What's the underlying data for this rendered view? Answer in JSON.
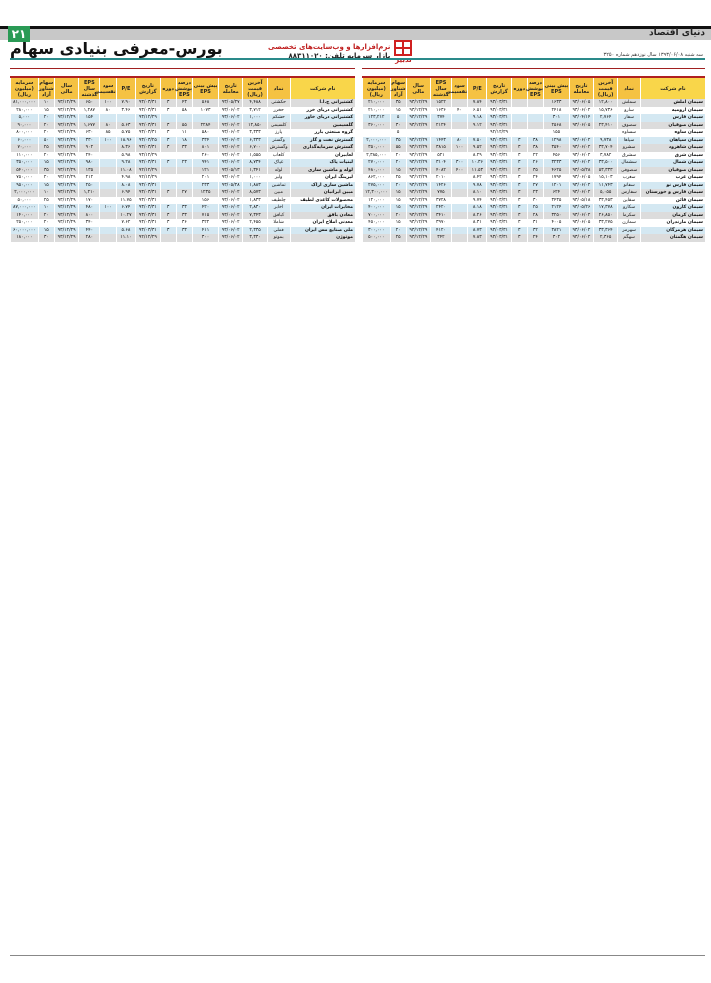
{
  "header": {
    "page_number": "۲۱",
    "masthead": "دنیای اقتصاد",
    "title": "بورس-معرفی بنیادی سهام",
    "ad_line1": "نرم‌افزارها و وب‌سایت‌های تخصصی",
    "ad_line2": "بازار سرمایه  تلفن: ۸۸۳۱۱۰۲۰",
    "logo_text": "تدبیر",
    "issue": "سه شنبه ۱۳۹۳/۰۶/۰۸ سال نوزدهم شماره ۳۲۵۰"
  },
  "colors": {
    "accent_green": "#2a9a55",
    "header_yellow": "#f5c242",
    "row_blue": "#d4e8f2",
    "row_gray": "#dcdcdc",
    "rule_red": "#b02020"
  },
  "columns": [
    "نام شرکت",
    "نماد",
    "آخرین قیمت (ریال)",
    "تاریخ معامله",
    "پیش بینی EPS",
    "درصد پوشش EPS",
    "دوره",
    "تاریخ گزارش",
    "P/E",
    "سود تقسیمی",
    "EPS سال گذشته",
    "سال مالی",
    "سهام شناور آزاد",
    "سرمایه (میلیون ریال)"
  ],
  "right_table": {
    "rows": [
      [
        "سیمان املش",
        "سملش",
        "۱۲,۸۰۰",
        "۹۳/۰۶/۰۵",
        "۱۶۳۳",
        "",
        "",
        "۹۳/۰۳/۳۱",
        "۷.۸۴",
        "",
        "۱۵۲۲",
        "۹۳/۱۲/۲۹",
        "۳۵",
        "۲۱۰,۰۰۰"
      ],
      [
        "سیمان ارومیه",
        "سارو",
        "۱۵,۷۳۶",
        "۹۳/۰۶/۰۲",
        "۲۴۱۸",
        "",
        "",
        "۹۳/۰۳/۳۱",
        "۶.۵۱",
        "۴۰",
        "۱۶۳۶",
        "۹۳/۱۲/۲۹",
        "۱۵",
        "۲۱۰,۰۰۰"
      ],
      [
        "سیمان فارس",
        "سفار",
        "۲,۷۶۴",
        "۹۳/۰۴/۱۴",
        "۳۰۱",
        "",
        "",
        "۹۳/۰۳/۳۱",
        "۹.۱۸",
        "",
        "۳۷۴",
        "۹۳/۱۲/۲۹",
        "۵",
        "۱۲۳,۲۱۲"
      ],
      [
        "سیمان صوفیان",
        "سصوف",
        "۲۳,۴۱۰",
        "۹۳/۰۶/۰۵",
        "۲۵۶۸",
        "",
        "",
        "۹۳/۰۳/۳۱",
        "۹.۱۲",
        "",
        "۲۱۲۴",
        "۹۳/۱۲/۲۹",
        "۳۰",
        "۳۶۰,۰۰۰"
      ],
      [
        "سیمان ساوه",
        "سساوه",
        "",
        "",
        "۱۵۵",
        "",
        "",
        "۹۲/۱۲/۲۹",
        "",
        "",
        "",
        "",
        "۵",
        ""
      ],
      [
        "سیمان سپاهان",
        "سپاها",
        "۹,۷۳۸",
        "۹۳/۰۶/۰۲",
        "۱۲۹۸",
        "۳۸",
        "۳",
        "۹۳/۰۳/۳۱",
        "۷.۵۰",
        "۸۰",
        "۱۴۴۳",
        "۹۳/۱۲/۲۹",
        "۳۵",
        "۲,۰۰۰,۰۰۰"
      ],
      [
        "سیمان شاهرود",
        "سشرو",
        "۳۳,۷۰۴",
        "۹۳/۰۶/۰۲",
        "۳۵۴۰",
        "۳۸",
        "۳",
        "۹۳/۰۳/۳۱",
        "۹.۵۲",
        "۱۰۰",
        "۳۸۱۵",
        "۹۳/۱۲/۲۹",
        "۵۵",
        "۳۵۰,۰۰۰"
      ],
      [
        "سیمان شرق",
        "سشرق",
        "۳,۷۸۲",
        "۹۳/۰۶/۰۲",
        "۴۵۶",
        "۲۲",
        "۳",
        "۹۳/۰۳/۳۱",
        "۸.۲۹",
        "",
        "۵۲۱",
        "۹۳/۱۲/۲۹",
        "۲۰",
        "۲,۳۸۵,۰۰۰"
      ],
      [
        "سیمان شمال",
        "سشمال",
        "۳۳,۵۰۰",
        "۹۳/۰۶/۰۲",
        "۳۲۳۳",
        "۲۶",
        "۳",
        "۹۳/۰۳/۳۱",
        "۱۰.۳۶",
        "۳۰۰",
        "۳۱۰۴",
        "۹۳/۱۲/۲۹",
        "۲۰",
        "۲۷۰,۰۰۰"
      ],
      [
        "سیمان صوفیان",
        "سصوفی",
        "۵۳,۳۳۳",
        "۹۳/۰۵/۲۸",
        "۴۶۲۵",
        "۳۵",
        "۳",
        "۹۳/۰۳/۳۱",
        "۱۱.۵۳",
        "۴۰۰",
        "۴۰۸۲",
        "۹۳/۱۲/۲۹",
        "۱۵",
        "۴۸۰,۰۰۰"
      ],
      [
        "سیمان غرب",
        "سغرب",
        "۱۵,۱۰۳",
        "۹۳/۰۶/۰۵",
        "۱۷۹۴",
        "۲۴",
        "۳",
        "۹۳/۰۳/۳۱",
        "۸.۴۲",
        "",
        "۲۰۱۰",
        "۹۳/۱۲/۲۹",
        "۲۵",
        "۸۶۲,۰۰۰"
      ],
      [
        "سیمان فارس نو",
        "سفانو",
        "۱۱,۷۴۳",
        "۹۳/۰۶/۰۲",
        "۱۲۰۱",
        "۲۷",
        "۳",
        "۹۳/۰۳/۳۱",
        "۹.۷۸",
        "",
        "۱۴۲۶",
        "۹۳/۱۲/۲۹",
        "۲۰",
        "۲۷۵,۰۰۰"
      ],
      [
        "سیمان فارس و خوزستان",
        "سفارس",
        "۵,۰۵۵",
        "۹۳/۰۶/۰۲",
        "۶۲۴",
        "۲۳",
        "۳",
        "۹۳/۰۳/۳۱",
        "۸.۱۰",
        "",
        "۷۷۵",
        "۹۳/۱۲/۲۹",
        "۱۵",
        "۱۲,۳۰۰,۰۰۰"
      ],
      [
        "سیمان قائن",
        "سقاین",
        "۳۳,۴۵۳",
        "۹۳/۰۵/۱۸",
        "۳۴۳۵",
        "۳۰",
        "۳",
        "۹۳/۰۳/۳۱",
        "۹.۷۴",
        "",
        "۳۷۲۸",
        "۹۳/۱۲/۲۹",
        "۱۵",
        "۱۲۰,۰۰۰"
      ],
      [
        "سیمان کارون",
        "سکارو",
        "۱۷,۳۷۸",
        "۹۳/۰۵/۲۶",
        "۲۱۲۴",
        "۲۵",
        "۳",
        "۹۳/۰۳/۳۱",
        "۸.۱۸",
        "",
        "۲۴۲۰",
        "۹۳/۱۲/۲۹",
        "۱۵",
        "۴۰۰,۰۰۰"
      ],
      [
        "سیمان کرمان",
        "سکرما",
        "۲۶,۸۵۰",
        "۹۳/۰۶/۰۲",
        "۳۲۵۰",
        "۲۸",
        "۳",
        "۹۳/۰۳/۳۱",
        "۸.۲۶",
        "",
        "۳۴۱۰",
        "۹۳/۱۲/۲۹",
        "۲۰",
        "۷۰۰,۰۰۰"
      ],
      [
        "سیمان مازندران",
        "سمازن",
        "۳۳,۲۷۵",
        "۹۳/۰۶/۰۵",
        "۴۰۰۵",
        "۳۱",
        "۳",
        "۹۳/۰۳/۳۱",
        "۸.۳۱",
        "",
        "۳۹۷۰",
        "۹۳/۱۲/۲۹",
        "۱۵",
        "۴۵۰,۰۰۰"
      ],
      [
        "سیمان هرمزگان",
        "سهرمز",
        "۳۳,۳۶۴",
        "۹۳/۰۶/۰۲",
        "۳۸۲۱",
        "۳۲",
        "۳",
        "۹۳/۰۳/۳۱",
        "۸.۷۳",
        "",
        "۴۱۲۰",
        "۹۳/۱۲/۲۹",
        "۲۰",
        "۳۰۰,۰۰۰"
      ],
      [
        "سیمان هگمتان",
        "سهگم",
        "۲,۳۶۵",
        "۹۳/۰۶/۰۲",
        "۳۰۲",
        "۲۴",
        "۳",
        "۹۳/۰۳/۳۱",
        "۷.۸۳",
        "",
        "۳۴۲",
        "۹۳/۱۲/۲۹",
        "۲۵",
        "۵۰۰,۰۰۰"
      ]
    ]
  },
  "left_table": {
    "rows": [
      [
        "کشتیرانی ج.ا.ا",
        "حکشتی",
        "۴,۴۸۸",
        "۹۳/۰۵/۲۷",
        "۵۶۸",
        "۴۳",
        "۳",
        "۹۳/۰۳/۳۱",
        "۷.۹۰",
        "۱۰۰",
        "۶۵۰",
        "۹۳/۱۲/۲۹",
        "۱۰",
        "۸۱,۰۰۰,۰۰۰"
      ],
      [
        "کشتیرانی دریای خزر",
        "حخزر",
        "۳,۷۱۲",
        "۹۳/۰۶/۰۲",
        "۱۰۷۳",
        "۵۸",
        "۳",
        "۹۳/۰۳/۳۱",
        "۳.۴۶",
        "۸۰",
        "۱,۲۸۷",
        "۹۳/۱۲/۲۹",
        "۱۵",
        "۲۸۰,۰۰۰"
      ],
      [
        "کشتیرانی دریای خاور",
        "حشکم",
        "۱,۰۰۰",
        "۹۳/۰۶/۰۲",
        "",
        "",
        "",
        "۹۳/۱۲/۲۹",
        "",
        "",
        "۱۵۴",
        "۹۳/۱۲/۲۹",
        "۲۰",
        "۵,۰۰۰"
      ],
      [
        "گلسیمین",
        "کلسیمی",
        "۱۲,۸۵۰",
        "۹۳/۰۶/۰۲",
        "۲۲۸۴",
        "۵۵",
        "۳",
        "۹۳/۰۳/۳۱",
        "۵.۶۳",
        "۸۰",
        "۱,۶۷۷",
        "۹۳/۱۲/۲۹",
        "۲۰",
        "۹۰,۰۰۰"
      ],
      [
        "گروه صنعتی بارز",
        "پارز",
        "۳,۳۳۳",
        "۹۳/۰۶/۰۲",
        "۵۸۰",
        "۱۱",
        "۳",
        "۹۳/۰۳/۳۱",
        "۵.۷۵",
        "۸۵",
        "۶۳۰",
        "۹۳/۱۲/۲۹",
        "۲۰",
        "۸۰۰,۰۰۰"
      ],
      [
        "گسترش نفت و گاز",
        "وگستر",
        "۶,۳۳۳",
        "۹۳/۰۶/۰۲",
        "۳۳۴",
        "۱۸",
        "۳",
        "۹۳/۰۳/۲۵",
        "۱۸.۹۶",
        "۱۰۰",
        "۳۳۰",
        "۹۳/۱۲/۲۹",
        "۵۰",
        "۶۰,۰۰۰"
      ],
      [
        "گسترش سرمایه‌گذاری",
        "وگسترش",
        "۶,۷۰۰",
        "۹۳/۰۶/۰۲",
        "۸۰۱",
        "۳۳",
        "۳",
        "۹۳/۰۳/۳۱",
        "۸.۳۶",
        "",
        "۹۰۲",
        "۹۳/۱۲/۲۹",
        "۲۵",
        "۷۰,۰۰۰"
      ],
      [
        "لعابیران",
        "کلعاب",
        "۱,۵۵۵",
        "۹۳/۰۶/۰۲",
        "۲۶۰",
        "",
        "",
        "۹۳/۱۲/۲۹",
        "۵.۹۸",
        "",
        "۲۴۰",
        "۹۳/۱۲/۲۹",
        "۲۰",
        "۱۱۰,۰۰۰"
      ],
      [
        "لبنیات پاک",
        "غپاک",
        "۸,۷۳۴",
        "۹۳/۰۶/۰۲",
        "۹۴۱",
        "۲۳",
        "۳",
        "۹۳/۰۳/۳۱",
        "۹.۲۸",
        "",
        "۹۸۰",
        "۹۳/۱۲/۲۹",
        "۱۵",
        "۳۵۰,۰۰۰"
      ],
      [
        "لوله و ماشین سازی",
        "لوله",
        "۱,۳۴۱",
        "۹۳/۰۵/۱۳",
        "۱۲۱",
        "",
        "",
        "۹۲/۱۲/۲۹",
        "۱۱.۰۸",
        "",
        "۱۳۵",
        "۹۳/۱۲/۲۹",
        "۳۵",
        "۵۴۰,۰۰۰"
      ],
      [
        "لیزینگ ایران",
        "ولیز",
        "۱,۰۰۰",
        "۹۳/۰۶/۰۲",
        "۲۰۱",
        "",
        "",
        "۹۲/۱۲/۲۹",
        "۴.۹۸",
        "",
        "۲۱۲",
        "۹۳/۱۲/۲۹",
        "۲۰",
        "۷۵۰,۰۰۰"
      ],
      [
        "ماشین سازی اراک",
        "تماشین",
        "۱,۸۸۳",
        "۹۳/۰۵/۲۸",
        "۲۳۳",
        "",
        "",
        "۹۳/۰۳/۳۱",
        "۸.۰۸",
        "",
        "۲۵۰",
        "۹۳/۱۲/۲۹",
        "۱۵",
        "۹۵۰,۰۰۰"
      ],
      [
        "مبین ایرانیان",
        "مبین",
        "۸,۵۷۳",
        "۹۳/۰۶/۰۲",
        "۱۲۳۵",
        "۲۷",
        "۳",
        "۹۳/۰۳/۳۱",
        "۶.۹۴",
        "",
        "۱,۲۱۰",
        "۹۳/۱۲/۲۹",
        "۱۰",
        "۲,۰۰۰,۰۰۰"
      ],
      [
        "محصولات کاغذی لطیف",
        "چلطیف",
        "۱,۸۳۳",
        "۹۳/۰۶/۰۲",
        "۱۵۶",
        "",
        "",
        "۹۳/۰۳/۳۱",
        "۱۱.۷۵",
        "",
        "۱۷۰",
        "۹۳/۱۲/۲۹",
        "۲۵",
        "۵۰,۰۰۰"
      ],
      [
        "مخابرات ایران",
        "اخابر",
        "۲,۸۳۰",
        "۹۳/۰۶/۰۲",
        "۴۲۰",
        "۳۳",
        "۳",
        "۹۳/۰۳/۳۱",
        "۶.۷۴",
        "۱۰۰",
        "۴۸۰",
        "۹۳/۱۲/۲۹",
        "۱۰",
        "۸۷,۰۰۰,۰۰۰"
      ],
      [
        "معادن بافق",
        "کبافق",
        "۷,۳۴۳",
        "۹۳/۰۶/۰۲",
        "۷۱۵",
        "۳۳",
        "۳",
        "۹۳/۰۳/۳۱",
        "۱۰.۲۷",
        "",
        "۸۰۰",
        "۹۳/۱۲/۲۹",
        "۲۰",
        "۱۴۰,۰۰۰"
      ],
      [
        "معدنی املاح ایران",
        "شاملا",
        "۲,۴۵۵",
        "۹۳/۰۶/۰۲",
        "۳۲۲",
        "۳۶",
        "۳",
        "۹۳/۰۳/۳۱",
        "۷.۶۲",
        "",
        "۳۴۰",
        "۹۳/۱۲/۲۹",
        "۲۰",
        "۲۵۰,۰۰۰"
      ],
      [
        "ملی صنایع مس ایران",
        "فملی",
        "۲,۳۳۵",
        "۹۳/۰۶/۰۲",
        "۴۱۱",
        "۳۳",
        "۳",
        "۹۳/۰۳/۳۱",
        "۵.۶۸",
        "",
        "۴۴۰",
        "۹۳/۱۲/۲۹",
        "۱۵",
        "۶۰,۰۰۰,۰۰۰"
      ],
      [
        "موتوژن",
        "بموتو",
        "۳,۳۳۰",
        "۹۳/۰۶/۰۲",
        "۳۰۰",
        "",
        "",
        "۹۲/۱۲/۲۹",
        "۱۱.۱۰",
        "",
        "۲۸۰",
        "۹۳/۱۲/۲۹",
        "۳۰",
        "۱۸۰,۰۰۰"
      ]
    ]
  }
}
